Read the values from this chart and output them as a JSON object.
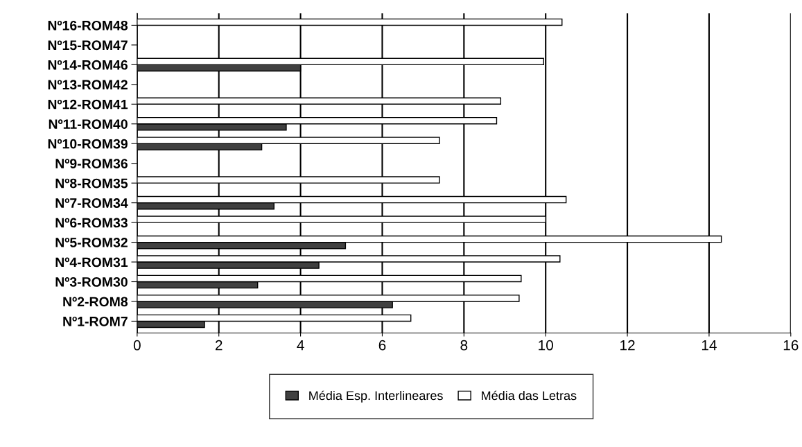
{
  "chart_data": {
    "type": "bar",
    "orientation": "horizontal",
    "categories": [
      "Nº16-ROM48",
      "Nº15-ROM47",
      "Nº14-ROM46",
      "Nº13-ROM42",
      "Nº12-ROM41",
      "Nº11-ROM40",
      "Nº10-ROM39",
      "Nº9-ROM36",
      "Nº8-ROM35",
      "Nº7-ROM34",
      "Nº6-ROM33",
      "Nº5-ROM32",
      "Nº4-ROM31",
      "Nº3-ROM30",
      "Nº2-ROM8",
      "Nº1-ROM7"
    ],
    "series": [
      {
        "name": "Média Esp. Interlineares",
        "color": "#404040",
        "values": [
          null,
          null,
          4.0,
          null,
          null,
          3.65,
          3.05,
          null,
          null,
          3.35,
          null,
          5.1,
          4.45,
          2.95,
          6.25,
          1.65
        ]
      },
      {
        "name": "Média das Letras",
        "color": "#ffffff",
        "values": [
          10.4,
          null,
          9.95,
          null,
          8.9,
          8.8,
          7.4,
          null,
          7.4,
          10.5,
          10.0,
          14.3,
          10.35,
          9.4,
          9.35,
          6.7
        ]
      }
    ],
    "xlim": [
      0,
      16
    ],
    "xticks": [
      0,
      2,
      4,
      6,
      8,
      10,
      12,
      14,
      16
    ],
    "grid": "x",
    "legend": "bottom"
  }
}
